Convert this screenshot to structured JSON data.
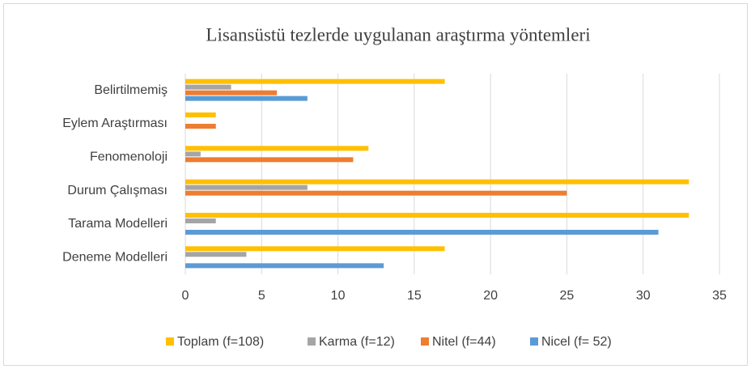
{
  "chart_data": {
    "type": "bar",
    "orientation": "horizontal",
    "title": "Lisansüstü tezlerde uygulanan araştırma yöntemleri",
    "categories": [
      "Belirtilmemiş",
      "Eylem Araştırması",
      "Fenomenoloji",
      "Durum Çalışması",
      "Tarama Modelleri",
      "Deneme Modelleri"
    ],
    "series": [
      {
        "name": "Toplam (f=108)",
        "color": "#FFC000",
        "values": [
          17,
          2,
          12,
          33,
          33,
          17
        ]
      },
      {
        "name": "Karma (f=12)",
        "color": "#A5A5A5",
        "values": [
          3,
          0,
          1,
          8,
          2,
          4
        ]
      },
      {
        "name": "Nitel (f=44)",
        "color": "#ED7D31",
        "values": [
          6,
          2,
          11,
          25,
          0,
          0
        ]
      },
      {
        "name": "Nicel (f= 52)",
        "color": "#5B9BD5",
        "values": [
          8,
          0,
          0,
          0,
          31,
          13
        ]
      }
    ],
    "xlim": [
      0,
      35
    ],
    "xticks": [
      0,
      5,
      10,
      15,
      20,
      25,
      30,
      35
    ],
    "grid": true,
    "legend": "bottom"
  }
}
